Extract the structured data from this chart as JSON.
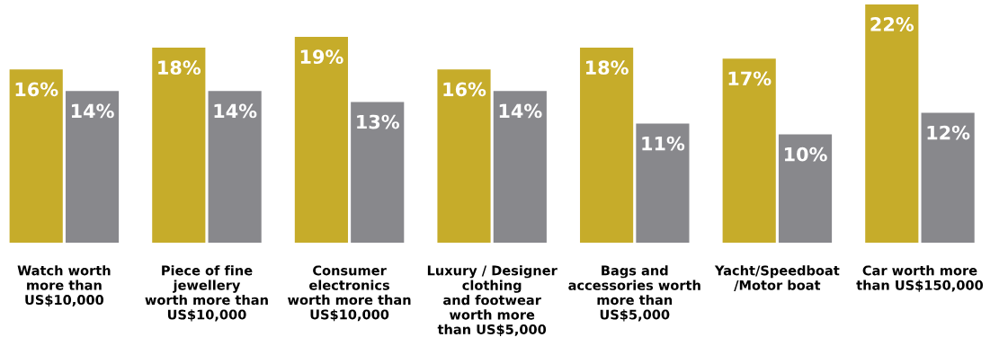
{
  "chart_data": {
    "type": "bar",
    "categories": [
      "Watch worth\nmore than\nUS$10,000",
      "Piece of fine\njewellery\nworth more than\nUS$10,000",
      "Consumer\nelectronics\nworth more than\nUS$10,000",
      "Luxury / Designer\nclothing\nand footwear\nworth more\nthan US$5,000",
      "Bags and\naccessories worth\nmore than\nUS$5,000",
      "Yacht/Speedboat\n/Motor boat",
      "Car worth more\nthan US$150,000"
    ],
    "series": [
      {
        "color": "#c6ac2a",
        "values": [
          16,
          18,
          19,
          16,
          18,
          17,
          22
        ],
        "value_labels": [
          "16%",
          "18%",
          "19%",
          "16%",
          "18%",
          "17%",
          "22%"
        ]
      },
      {
        "color": "#88888c",
        "values": [
          14,
          14,
          13,
          14,
          11,
          10,
          12
        ],
        "value_labels": [
          "14%",
          "14%",
          "13%",
          "14%",
          "11%",
          "10%",
          "12%"
        ]
      }
    ],
    "grid": false,
    "legend": false
  }
}
